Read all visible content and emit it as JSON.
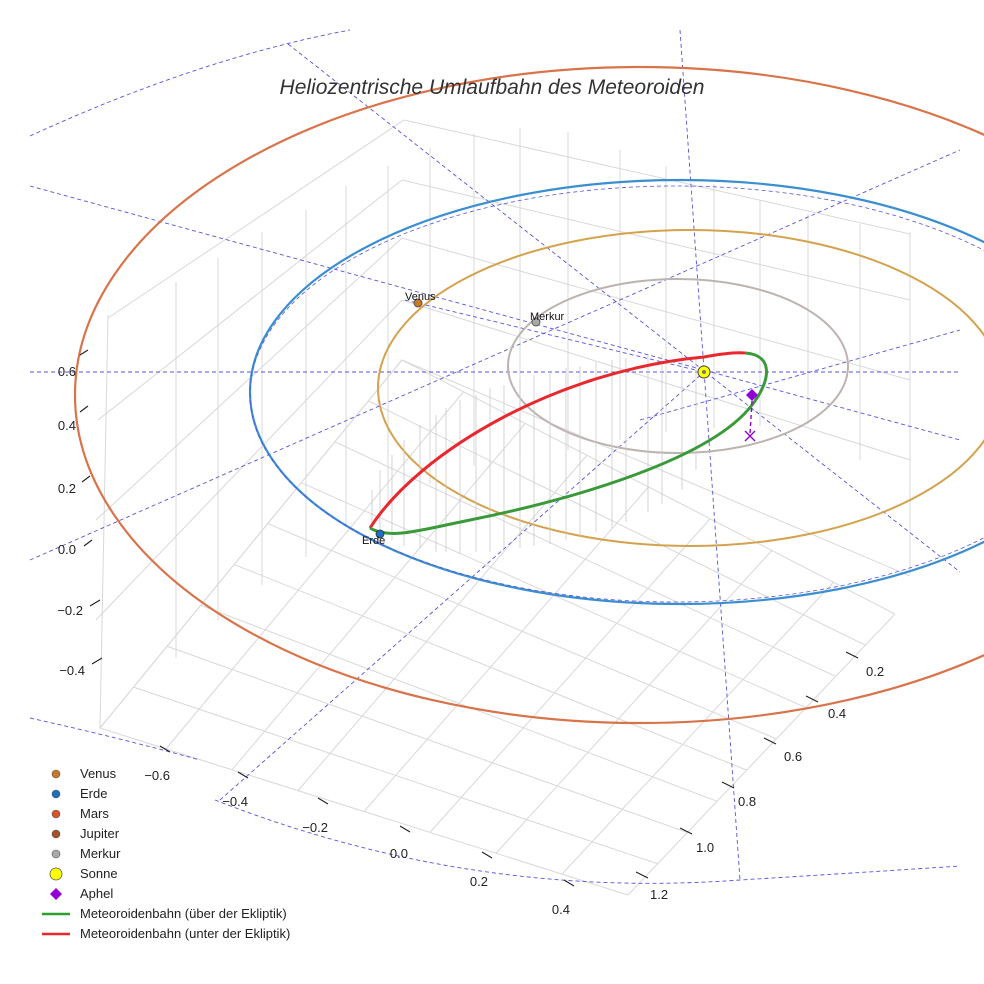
{
  "chart_data": {
    "type": "scatter",
    "title": "Heliozentrische Umlaufbahn des Meteoroiden",
    "axes": {
      "x_ticks": [
        "−0.6",
        "−0.4",
        "−0.2",
        "0.0",
        "0.2",
        "0.4"
      ],
      "y_ticks": [
        "0.2",
        "0.4",
        "0.6",
        "0.8",
        "1.0",
        "1.2"
      ],
      "z_ticks": [
        "0.6",
        "0.4",
        "0.2",
        "0.0",
        "−0.2",
        "−0.4"
      ]
    },
    "point_labels": {
      "venus": "Venus",
      "mercury": "Merkur",
      "earth": "Erde"
    },
    "legend": [
      {
        "label": "Venus",
        "marker": "dot",
        "color": "#c8792a"
      },
      {
        "label": "Erde",
        "marker": "dot",
        "color": "#1f6fc0"
      },
      {
        "label": "Mars",
        "marker": "dot",
        "color": "#d9532c"
      },
      {
        "label": "Jupiter",
        "marker": "dot",
        "color": "#a0522d"
      },
      {
        "label": "Merkur",
        "marker": "dot",
        "color": "#a9a9a9"
      },
      {
        "label": "Sonne",
        "marker": "circle",
        "color": "#ffff00"
      },
      {
        "label": "Aphel",
        "marker": "diamond",
        "color": "#9400d3"
      },
      {
        "label": "Meteoroidenbahn (über der Ekliptik)",
        "marker": "line",
        "color": "#2ca02c"
      },
      {
        "label": "Meteoroidenbahn (unter der Ekliptik)",
        "marker": "line",
        "color": "#e8282e"
      }
    ],
    "colors": {
      "mercury_orbit": "#bdb3b0",
      "venus_orbit": "#d4a24c",
      "earth_orbit": "#3b8fd0",
      "mars_orbit": "#d9734a",
      "guide_lines": "#5555dd",
      "grid": "#d8d8d8"
    }
  }
}
